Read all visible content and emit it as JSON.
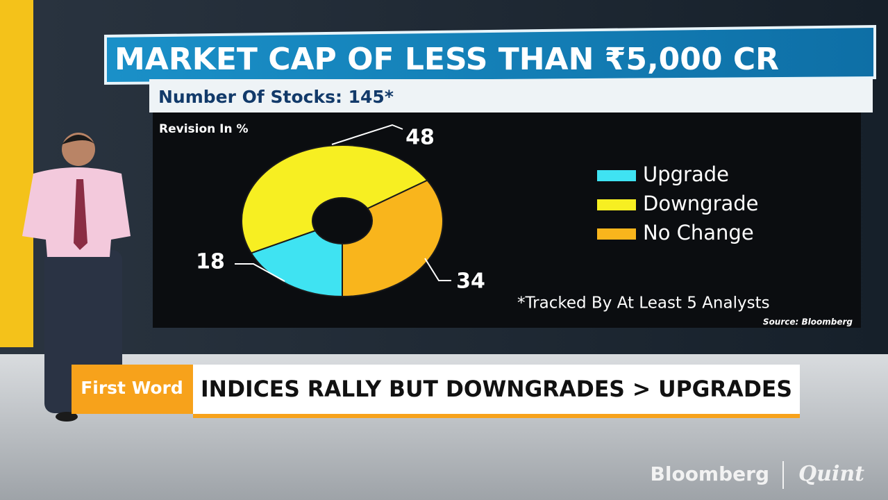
{
  "chart_data": {
    "type": "pie",
    "donut": true,
    "title": "MARKET CAP OF LESS THAN ₹5,000 CR",
    "subtitle": "Number Of Stocks: 145*",
    "value_axis_label": "Revision In %",
    "categories": [
      "Upgrade",
      "Downgrade",
      "No Change"
    ],
    "values": [
      18,
      48,
      34
    ],
    "colors": [
      "#3fe3f2",
      "#f7ef22",
      "#f9b51c"
    ],
    "legend": "right",
    "footnote": "*Tracked By At Least 5 Analysts",
    "source": "Source: Bloomberg"
  },
  "banner": {
    "tag": "First Word",
    "headline": "INDICES RALLY BUT DOWNGRADES > UPGRADES"
  },
  "logo": {
    "brand": "Bloomberg",
    "partner": "Quint"
  }
}
